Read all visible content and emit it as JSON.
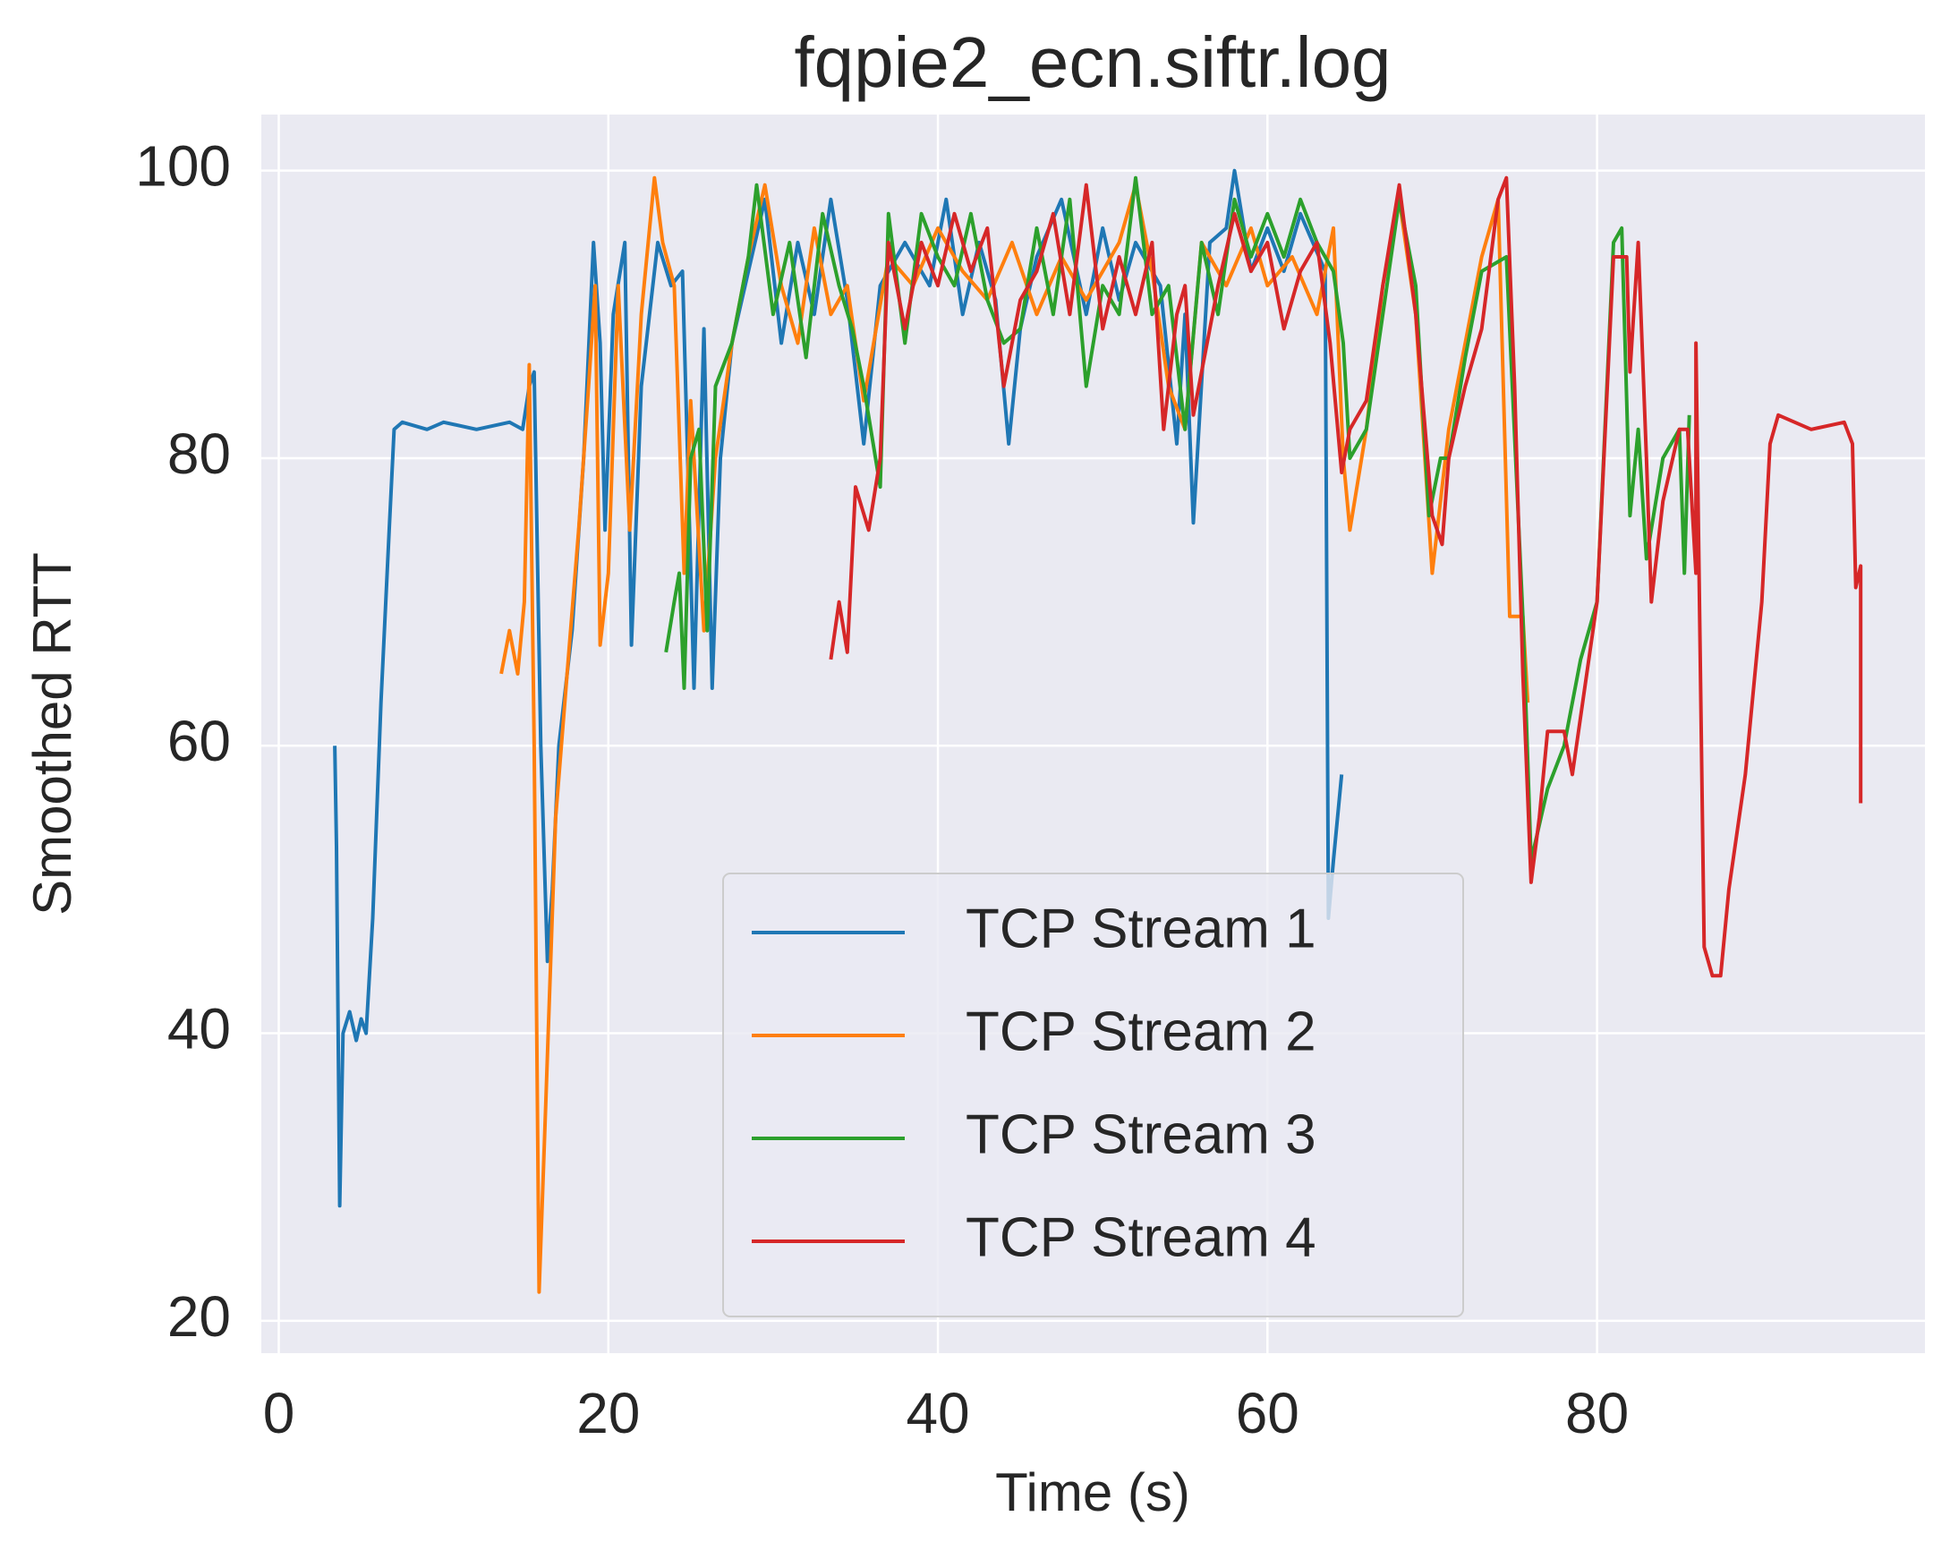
{
  "chart_data": {
    "type": "line",
    "title": "fqpie2_ecn.siftr.log",
    "x_label": "Time (s)",
    "y_label": "Smoothed RTT",
    "xlim": [
      -1.06,
      99.9
    ],
    "ylim": [
      17.75,
      103.9
    ],
    "xticks": [
      0,
      20,
      40,
      60,
      80
    ],
    "yticks": [
      20,
      40,
      60,
      80,
      100
    ],
    "grid": true,
    "legend": "lower center",
    "series": [
      {
        "name": "TCP Stream 1",
        "color": "#1f77b4",
        "x": [
          3.4,
          3.5,
          3.7,
          3.9,
          4.3,
          4.7,
          5,
          5.3,
          5.7,
          6.2,
          6.7,
          7,
          7.5,
          9,
          10,
          12,
          14,
          14.8,
          15.2,
          15.5,
          15.9,
          16.3,
          16.6,
          17,
          17.8,
          18.5,
          19.1,
          19.5,
          19.8,
          20.3,
          21,
          21.4,
          22,
          23,
          23.8,
          24.5,
          25.2,
          25.8,
          26.3,
          26.8,
          27.5,
          28.5,
          29.5,
          30.5,
          31.5,
          32.5,
          33.5,
          34.5,
          35.5,
          36.5,
          38,
          39.5,
          40.5,
          41.5,
          42.5,
          43.5,
          44.3,
          45,
          46,
          47.5,
          49,
          50,
          51,
          52,
          53.5,
          54.5,
          55,
          55.5,
          56.5,
          57.5,
          58,
          59,
          60,
          61,
          62,
          63.5,
          63.7,
          64,
          64.5
        ],
        "values": [
          60,
          53,
          28,
          40,
          41.5,
          39.5,
          41,
          40,
          48,
          63,
          75,
          82,
          82.5,
          82,
          82.5,
          82,
          82.5,
          82,
          85,
          86,
          60,
          45,
          50,
          60,
          68,
          80,
          95,
          88,
          75,
          90,
          95,
          67,
          85,
          95,
          92,
          93,
          64,
          89,
          64,
          80,
          88,
          93,
          98,
          88,
          95,
          90,
          98,
          91,
          81,
          92,
          95,
          92,
          98,
          90,
          95,
          91,
          81,
          89,
          94,
          98,
          90,
          96,
          91,
          95,
          92,
          81,
          90,
          75.5,
          95,
          96,
          100,
          93,
          96,
          93,
          97,
          93,
          48,
          52,
          58
        ]
      },
      {
        "name": "TCP Stream 2",
        "color": "#ff7f0e",
        "x": [
          13.5,
          14,
          14.5,
          14.9,
          15.2,
          15.5,
          15.8,
          16.2,
          16.8,
          17.5,
          18.2,
          18.8,
          19.2,
          19.5,
          20,
          20.6,
          21.3,
          22,
          22.8,
          23.3,
          24,
          24.6,
          25,
          25.8,
          26.5,
          27.5,
          28.5,
          29.5,
          30.5,
          31.5,
          32.5,
          33.5,
          34.5,
          35.5,
          37,
          38.5,
          40,
          41.5,
          43,
          44.5,
          46,
          47.5,
          49,
          51,
          52,
          53,
          54,
          55,
          56,
          57.5,
          59,
          60,
          61.5,
          63,
          64,
          64.6,
          65,
          66,
          67,
          68,
          69,
          70,
          71,
          72,
          73,
          74,
          74.7,
          75.5,
          75.8
        ],
        "values": [
          65,
          68,
          65,
          70,
          86.5,
          60,
          22,
          35,
          55,
          65,
          75,
          85,
          92,
          67,
          72,
          92,
          75,
          90,
          99.5,
          95,
          92,
          72,
          84,
          68,
          80,
          88,
          94,
          99,
          92,
          88,
          96,
          90,
          92,
          84,
          94,
          92,
          96,
          93,
          91,
          95,
          90,
          94,
          91,
          95,
          99,
          93,
          85,
          82,
          95,
          92,
          96,
          92,
          94,
          90,
          96,
          80,
          75,
          82,
          92,
          98,
          90,
          72,
          82,
          88,
          94,
          98,
          69,
          69,
          63
        ]
      },
      {
        "name": "TCP Stream 3",
        "color": "#2ca02c",
        "x": [
          23.5,
          24,
          24.3,
          24.6,
          25,
          25.5,
          26,
          26.5,
          27.5,
          28.5,
          29,
          30,
          31,
          32,
          33,
          34,
          34.8,
          35.5,
          36.5,
          37,
          38,
          39,
          40,
          41,
          42,
          43,
          44,
          45,
          46,
          47,
          48,
          49,
          50,
          51,
          52,
          53,
          54,
          55,
          56,
          57,
          58,
          59,
          60,
          61,
          62,
          63,
          64,
          64.6,
          65,
          66,
          67,
          68,
          69,
          69.8,
          70.5,
          71,
          72,
          73,
          74.5,
          75.5,
          76,
          77,
          78,
          79,
          80,
          81,
          81.5,
          82,
          82.5,
          83,
          84,
          85,
          85.3,
          85.6
        ],
        "values": [
          66.5,
          70,
          72,
          64,
          80,
          82,
          68,
          85,
          88,
          94,
          99,
          90,
          95,
          87,
          97,
          92,
          89,
          85,
          78,
          97,
          88,
          97,
          94,
          92,
          97,
          91,
          88,
          89,
          96,
          90,
          98,
          85,
          92,
          90,
          99.5,
          90,
          92,
          82,
          95,
          90,
          98,
          94,
          97,
          94,
          98,
          95,
          93,
          88,
          80,
          82,
          90,
          98,
          92,
          76,
          80,
          80,
          87,
          93,
          94,
          69,
          52,
          57,
          60,
          66,
          70,
          95,
          96,
          76,
          82,
          73,
          80,
          82,
          72,
          83
        ]
      },
      {
        "name": "TCP Stream 4",
        "color": "#d62728",
        "x": [
          33.5,
          34,
          34.5,
          35,
          35.8,
          36.5,
          37,
          38,
          39,
          40,
          41,
          42,
          43,
          44,
          45,
          46,
          47,
          48,
          49,
          50,
          51,
          52,
          53,
          53.7,
          54.5,
          55,
          55.5,
          56,
          57,
          58,
          59,
          60,
          61,
          62,
          63,
          63.8,
          64.5,
          65,
          66,
          67,
          68,
          69,
          70,
          70.6,
          71,
          72,
          73,
          74,
          74.5,
          75,
          75.5,
          76,
          76.5,
          77,
          78,
          78.5,
          79,
          80,
          81,
          81.8,
          82,
          82.5,
          83,
          83.3,
          84,
          85,
          85.5,
          86,
          86,
          86.5,
          87,
          87.5,
          88,
          89,
          90,
          90.5,
          91,
          93,
          95,
          95.5,
          95.7,
          96,
          96
        ],
        "values": [
          66,
          70,
          66.5,
          78,
          75,
          80,
          95,
          89,
          95,
          92,
          97,
          93,
          96,
          85,
          91,
          93,
          97,
          90,
          99,
          89,
          94,
          90,
          95,
          82,
          90,
          92,
          83,
          86,
          92,
          97,
          93,
          95,
          89,
          93,
          95,
          88,
          79,
          82,
          84,
          92,
          99,
          90,
          76,
          74,
          80,
          85,
          89,
          98,
          99.5,
          85,
          65,
          50.5,
          55,
          61,
          61,
          58,
          62,
          70,
          94,
          94,
          86,
          95,
          80,
          70,
          77,
          82,
          82,
          72,
          88,
          46,
          44,
          44,
          50,
          58,
          70,
          81,
          83,
          82,
          82.5,
          81,
          71,
          72.5,
          56
        ]
      }
    ]
  }
}
